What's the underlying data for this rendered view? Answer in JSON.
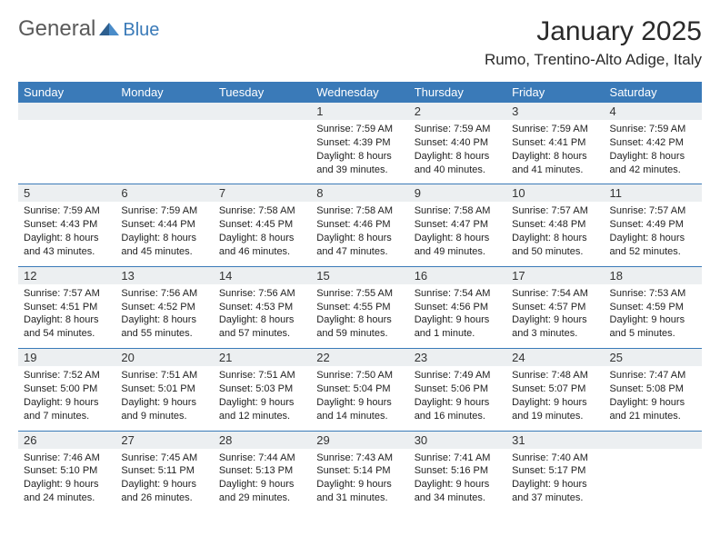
{
  "brand": {
    "part1": "General",
    "part2": "Blue"
  },
  "title": "January 2025",
  "location": "Rumo, Trentino-Alto Adige, Italy",
  "colors": {
    "header_bg": "#3a7ab8",
    "header_fg": "#ffffff",
    "daynum_bg": "#eceff1",
    "rule": "#3a7ab8",
    "text": "#222222",
    "logo_gray": "#5a5a5a",
    "logo_blue": "#3a7ab8"
  },
  "day_headers": [
    "Sunday",
    "Monday",
    "Tuesday",
    "Wednesday",
    "Thursday",
    "Friday",
    "Saturday"
  ],
  "weeks": [
    [
      null,
      null,
      null,
      {
        "n": "1",
        "sr": "7:59 AM",
        "ss": "4:39 PM",
        "dl": "8 hours and 39 minutes."
      },
      {
        "n": "2",
        "sr": "7:59 AM",
        "ss": "4:40 PM",
        "dl": "8 hours and 40 minutes."
      },
      {
        "n": "3",
        "sr": "7:59 AM",
        "ss": "4:41 PM",
        "dl": "8 hours and 41 minutes."
      },
      {
        "n": "4",
        "sr": "7:59 AM",
        "ss": "4:42 PM",
        "dl": "8 hours and 42 minutes."
      }
    ],
    [
      {
        "n": "5",
        "sr": "7:59 AM",
        "ss": "4:43 PM",
        "dl": "8 hours and 43 minutes."
      },
      {
        "n": "6",
        "sr": "7:59 AM",
        "ss": "4:44 PM",
        "dl": "8 hours and 45 minutes."
      },
      {
        "n": "7",
        "sr": "7:58 AM",
        "ss": "4:45 PM",
        "dl": "8 hours and 46 minutes."
      },
      {
        "n": "8",
        "sr": "7:58 AM",
        "ss": "4:46 PM",
        "dl": "8 hours and 47 minutes."
      },
      {
        "n": "9",
        "sr": "7:58 AM",
        "ss": "4:47 PM",
        "dl": "8 hours and 49 minutes."
      },
      {
        "n": "10",
        "sr": "7:57 AM",
        "ss": "4:48 PM",
        "dl": "8 hours and 50 minutes."
      },
      {
        "n": "11",
        "sr": "7:57 AM",
        "ss": "4:49 PM",
        "dl": "8 hours and 52 minutes."
      }
    ],
    [
      {
        "n": "12",
        "sr": "7:57 AM",
        "ss": "4:51 PM",
        "dl": "8 hours and 54 minutes."
      },
      {
        "n": "13",
        "sr": "7:56 AM",
        "ss": "4:52 PM",
        "dl": "8 hours and 55 minutes."
      },
      {
        "n": "14",
        "sr": "7:56 AM",
        "ss": "4:53 PM",
        "dl": "8 hours and 57 minutes."
      },
      {
        "n": "15",
        "sr": "7:55 AM",
        "ss": "4:55 PM",
        "dl": "8 hours and 59 minutes."
      },
      {
        "n": "16",
        "sr": "7:54 AM",
        "ss": "4:56 PM",
        "dl": "9 hours and 1 minute."
      },
      {
        "n": "17",
        "sr": "7:54 AM",
        "ss": "4:57 PM",
        "dl": "9 hours and 3 minutes."
      },
      {
        "n": "18",
        "sr": "7:53 AM",
        "ss": "4:59 PM",
        "dl": "9 hours and 5 minutes."
      }
    ],
    [
      {
        "n": "19",
        "sr": "7:52 AM",
        "ss": "5:00 PM",
        "dl": "9 hours and 7 minutes."
      },
      {
        "n": "20",
        "sr": "7:51 AM",
        "ss": "5:01 PM",
        "dl": "9 hours and 9 minutes."
      },
      {
        "n": "21",
        "sr": "7:51 AM",
        "ss": "5:03 PM",
        "dl": "9 hours and 12 minutes."
      },
      {
        "n": "22",
        "sr": "7:50 AM",
        "ss": "5:04 PM",
        "dl": "9 hours and 14 minutes."
      },
      {
        "n": "23",
        "sr": "7:49 AM",
        "ss": "5:06 PM",
        "dl": "9 hours and 16 minutes."
      },
      {
        "n": "24",
        "sr": "7:48 AM",
        "ss": "5:07 PM",
        "dl": "9 hours and 19 minutes."
      },
      {
        "n": "25",
        "sr": "7:47 AM",
        "ss": "5:08 PM",
        "dl": "9 hours and 21 minutes."
      }
    ],
    [
      {
        "n": "26",
        "sr": "7:46 AM",
        "ss": "5:10 PM",
        "dl": "9 hours and 24 minutes."
      },
      {
        "n": "27",
        "sr": "7:45 AM",
        "ss": "5:11 PM",
        "dl": "9 hours and 26 minutes."
      },
      {
        "n": "28",
        "sr": "7:44 AM",
        "ss": "5:13 PM",
        "dl": "9 hours and 29 minutes."
      },
      {
        "n": "29",
        "sr": "7:43 AM",
        "ss": "5:14 PM",
        "dl": "9 hours and 31 minutes."
      },
      {
        "n": "30",
        "sr": "7:41 AM",
        "ss": "5:16 PM",
        "dl": "9 hours and 34 minutes."
      },
      {
        "n": "31",
        "sr": "7:40 AM",
        "ss": "5:17 PM",
        "dl": "9 hours and 37 minutes."
      },
      null
    ]
  ],
  "labels": {
    "sunrise": "Sunrise:",
    "sunset": "Sunset:",
    "daylight": "Daylight:"
  }
}
